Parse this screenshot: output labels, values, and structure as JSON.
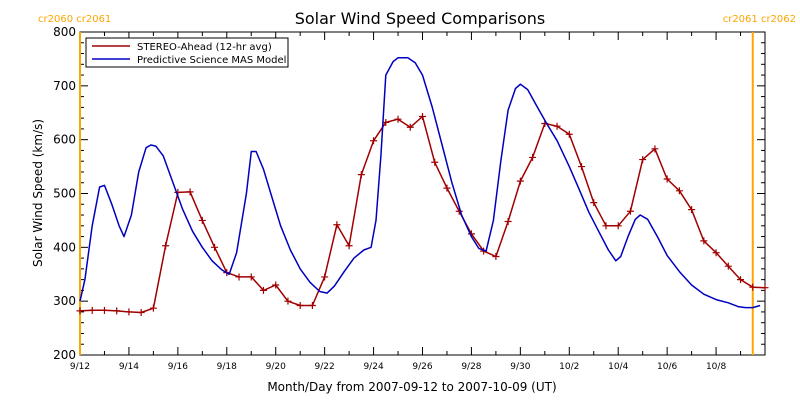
{
  "chart_data": {
    "type": "line",
    "title": "Solar Wind Speed Comparisons",
    "xlabel": "Month/Day from 2007-09-12 to 2007-10-09 (UT)",
    "ylabel": "Solar Wind Speed (km/s)",
    "x_unit": "days",
    "xlim": [
      0,
      28
    ],
    "ylim": [
      200,
      800
    ],
    "yticks": [
      200,
      300,
      400,
      500,
      600,
      700,
      800
    ],
    "xticks": [
      {
        "x": 0,
        "label": "9/12"
      },
      {
        "x": 2,
        "label": "9/14"
      },
      {
        "x": 4,
        "label": "9/16"
      },
      {
        "x": 6,
        "label": "9/18"
      },
      {
        "x": 8,
        "label": "9/20"
      },
      {
        "x": 10,
        "label": "9/22"
      },
      {
        "x": 12,
        "label": "9/24"
      },
      {
        "x": 14,
        "label": "9/26"
      },
      {
        "x": 16,
        "label": "9/28"
      },
      {
        "x": 18,
        "label": "9/30"
      },
      {
        "x": 20,
        "label": "10/2"
      },
      {
        "x": 22,
        "label": "10/4"
      },
      {
        "x": 24,
        "label": "10/6"
      },
      {
        "x": 26,
        "label": "10/8"
      }
    ],
    "legend_position": "top-left",
    "grid": false,
    "carrington_markers": [
      {
        "x": 0,
        "label": "cr2060 cr2061",
        "color": "#ffa500",
        "align": "left"
      },
      {
        "x": 27.5,
        "label": "cr2061 cr2062",
        "color": "#ffa500",
        "align": "right"
      }
    ],
    "series": [
      {
        "name": "STEREO-Ahead (12-hr avg)",
        "color": "#a00000",
        "marker": "plus",
        "points": [
          [
            0,
            282
          ],
          [
            0.5,
            283
          ],
          [
            1,
            283
          ],
          [
            1.5,
            282
          ],
          [
            2,
            280
          ],
          [
            2.5,
            279
          ],
          [
            3,
            287
          ],
          [
            3.5,
            403
          ],
          [
            4,
            502
          ],
          [
            4.5,
            503
          ],
          [
            5,
            450
          ],
          [
            5.5,
            400
          ],
          [
            6,
            353
          ],
          [
            6.5,
            345
          ],
          [
            7,
            345
          ],
          [
            7.5,
            320
          ],
          [
            8,
            330
          ],
          [
            8.5,
            300
          ],
          [
            9,
            292
          ],
          [
            9.5,
            292
          ],
          [
            10,
            345
          ],
          [
            10.5,
            442
          ],
          [
            11,
            403
          ],
          [
            11.5,
            535
          ],
          [
            12,
            598
          ],
          [
            12.5,
            632
          ],
          [
            13,
            638
          ],
          [
            13.5,
            623
          ],
          [
            14,
            643
          ],
          [
            14.5,
            558
          ],
          [
            15,
            510
          ],
          [
            15.5,
            467
          ],
          [
            16,
            425
          ],
          [
            16.5,
            393
          ],
          [
            17,
            383
          ],
          [
            17.5,
            448
          ],
          [
            18,
            523
          ],
          [
            18.5,
            567
          ],
          [
            19,
            630
          ],
          [
            19.5,
            625
          ],
          [
            20,
            610
          ],
          [
            20.5,
            550
          ],
          [
            21,
            483
          ],
          [
            21.5,
            440
          ],
          [
            22,
            440
          ],
          [
            22.5,
            467
          ],
          [
            23,
            563
          ],
          [
            23.5,
            583
          ],
          [
            24,
            527
          ],
          [
            24.5,
            505
          ],
          [
            25,
            470
          ],
          [
            25.5,
            412
          ],
          [
            26,
            390
          ],
          [
            26.5,
            365
          ],
          [
            27,
            340
          ],
          [
            27.5,
            326
          ],
          [
            28,
            325
          ]
        ]
      },
      {
        "name": "Predictive Science MAS Model",
        "color": "#0000c0",
        "marker": "none",
        "points": [
          [
            0,
            300
          ],
          [
            0.2,
            340
          ],
          [
            0.5,
            440
          ],
          [
            0.8,
            512
          ],
          [
            1,
            515
          ],
          [
            1.3,
            480
          ],
          [
            1.6,
            440
          ],
          [
            1.8,
            420
          ],
          [
            2.1,
            460
          ],
          [
            2.4,
            540
          ],
          [
            2.7,
            585
          ],
          [
            2.9,
            590
          ],
          [
            3.1,
            588
          ],
          [
            3.4,
            570
          ],
          [
            3.8,
            520
          ],
          [
            4.2,
            470
          ],
          [
            4.6,
            430
          ],
          [
            5,
            400
          ],
          [
            5.4,
            375
          ],
          [
            5.8,
            358
          ],
          [
            6.1,
            350
          ],
          [
            6.4,
            390
          ],
          [
            6.8,
            500
          ],
          [
            7,
            578
          ],
          [
            7.2,
            578
          ],
          [
            7.5,
            545
          ],
          [
            7.8,
            500
          ],
          [
            8.2,
            440
          ],
          [
            8.6,
            395
          ],
          [
            9,
            360
          ],
          [
            9.4,
            335
          ],
          [
            9.8,
            318
          ],
          [
            10.1,
            315
          ],
          [
            10.4,
            328
          ],
          [
            10.8,
            355
          ],
          [
            11.2,
            380
          ],
          [
            11.6,
            395
          ],
          [
            11.9,
            400
          ],
          [
            12.1,
            450
          ],
          [
            12.3,
            570
          ],
          [
            12.5,
            720
          ],
          [
            12.8,
            745
          ],
          [
            13,
            752
          ],
          [
            13.4,
            752
          ],
          [
            13.7,
            743
          ],
          [
            14,
            720
          ],
          [
            14.4,
            660
          ],
          [
            14.8,
            590
          ],
          [
            15.2,
            520
          ],
          [
            15.6,
            460
          ],
          [
            16,
            420
          ],
          [
            16.3,
            398
          ],
          [
            16.6,
            393
          ],
          [
            16.9,
            450
          ],
          [
            17.2,
            560
          ],
          [
            17.5,
            655
          ],
          [
            17.8,
            695
          ],
          [
            18,
            703
          ],
          [
            18.3,
            693
          ],
          [
            18.7,
            660
          ],
          [
            19.1,
            628
          ],
          [
            19.5,
            598
          ],
          [
            20,
            550
          ],
          [
            20.4,
            508
          ],
          [
            20.8,
            465
          ],
          [
            21.2,
            430
          ],
          [
            21.6,
            395
          ],
          [
            21.9,
            375
          ],
          [
            22.1,
            383
          ],
          [
            22.4,
            420
          ],
          [
            22.7,
            452
          ],
          [
            22.9,
            460
          ],
          [
            23.2,
            452
          ],
          [
            23.6,
            420
          ],
          [
            24,
            385
          ],
          [
            24.5,
            355
          ],
          [
            25,
            330
          ],
          [
            25.5,
            313
          ],
          [
            26,
            303
          ],
          [
            26.5,
            297
          ],
          [
            26.9,
            290
          ],
          [
            27.2,
            288
          ],
          [
            27.5,
            288
          ],
          [
            27.8,
            292
          ]
        ]
      }
    ]
  }
}
